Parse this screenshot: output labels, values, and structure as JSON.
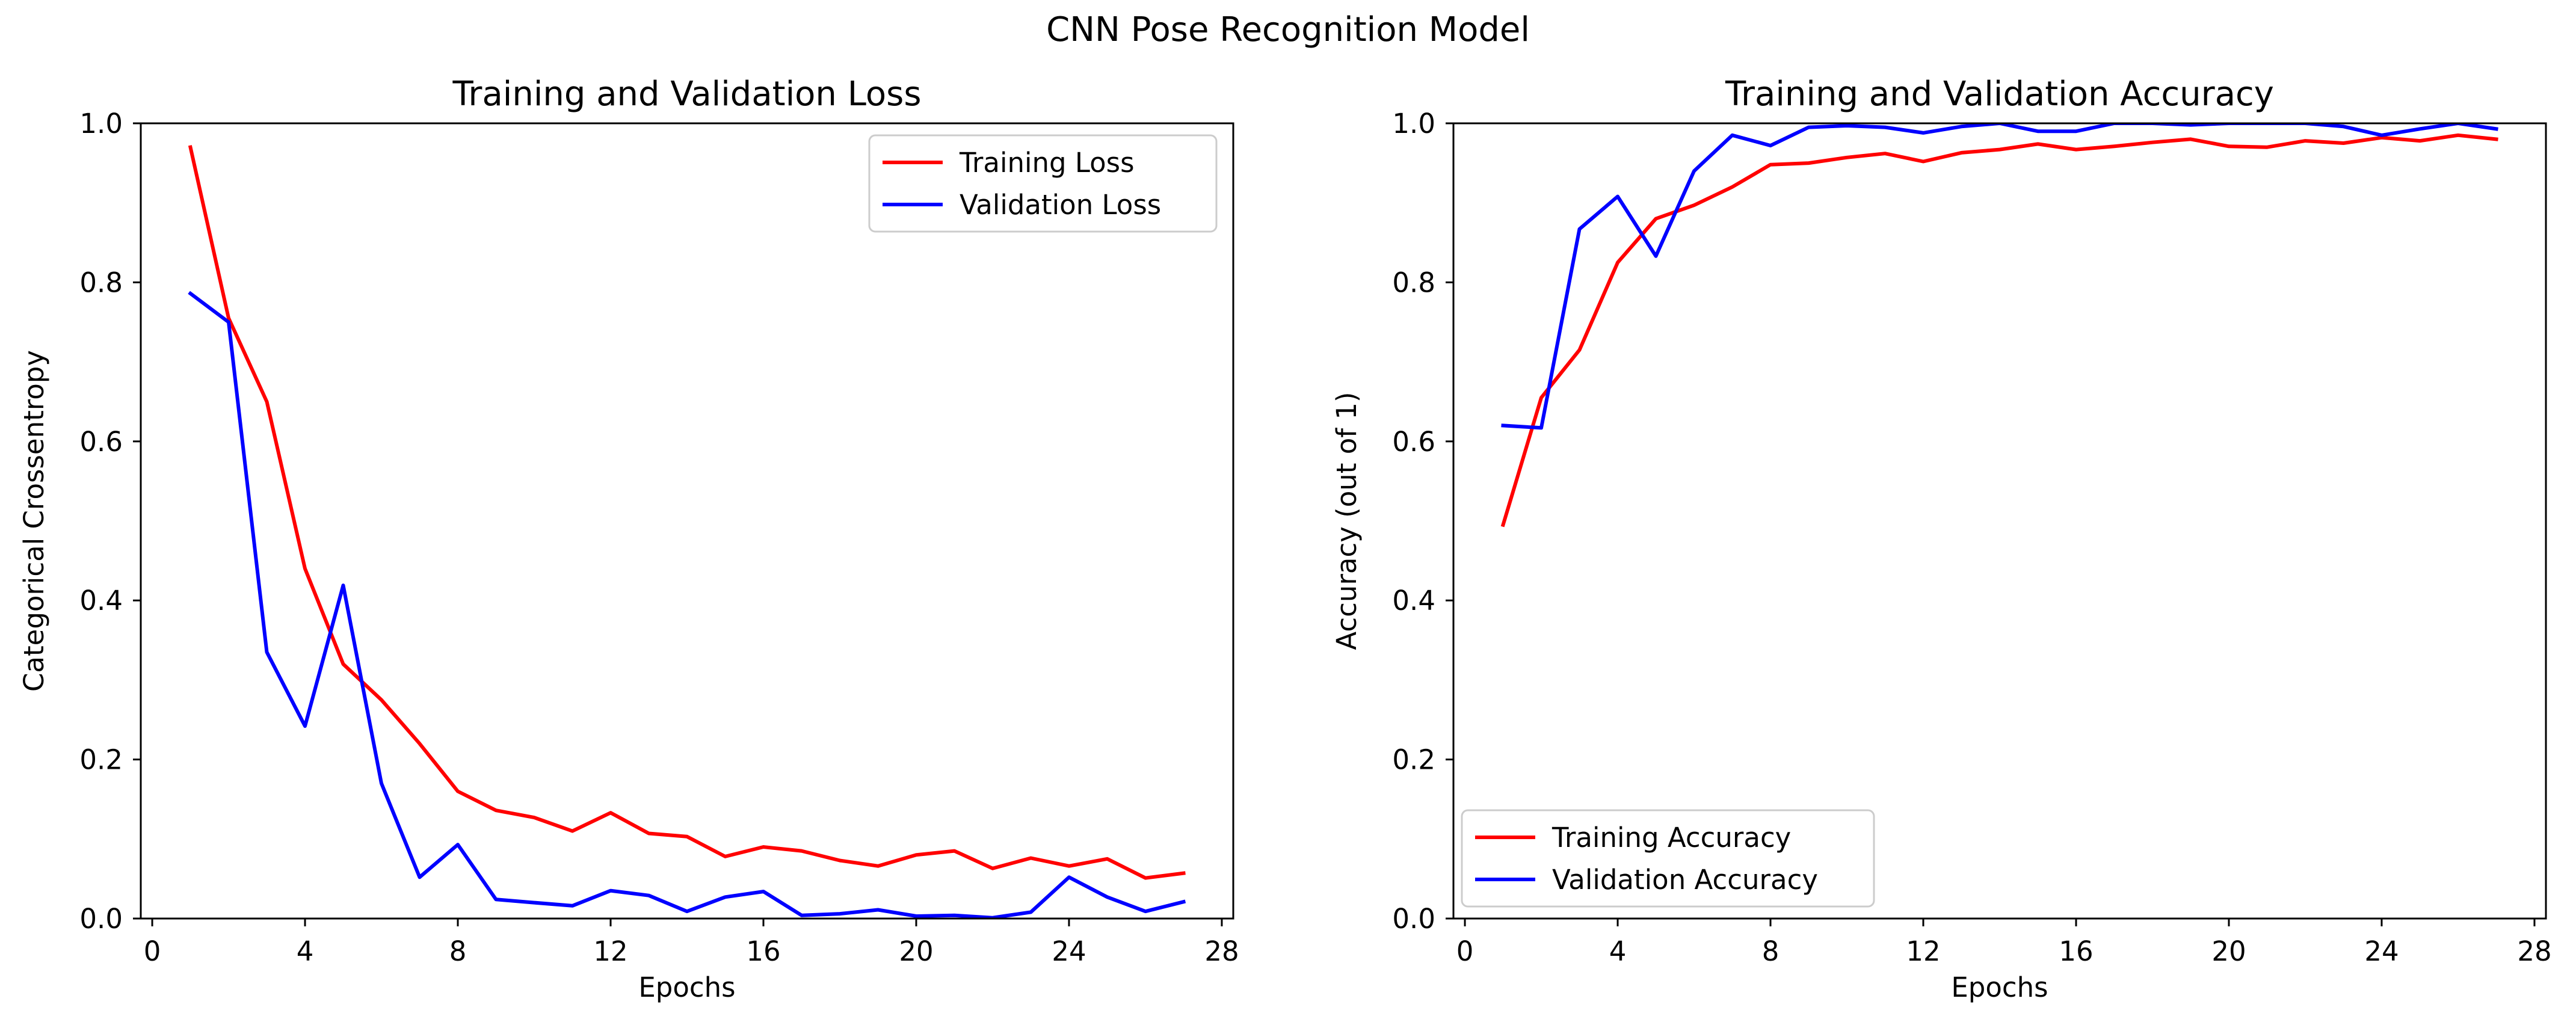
{
  "figure_title": "CNN Pose Recognition Model",
  "colors": {
    "training": "#ff0000",
    "validation": "#0000ff"
  },
  "chart_data": [
    {
      "type": "line",
      "title": "Training and Validation Loss",
      "xlabel": "Epochs",
      "ylabel": "Categorical Crossentropy",
      "xlim": [
        -0.3,
        28.3
      ],
      "ylim": [
        0,
        1.0
      ],
      "xticks": [
        0,
        4,
        8,
        12,
        16,
        20,
        24,
        28
      ],
      "yticks": [
        0.0,
        0.2,
        0.4,
        0.6,
        0.8,
        1.0
      ],
      "ytick_labels": [
        "0.0",
        "0.2",
        "0.4",
        "0.6",
        "0.8",
        "1.0"
      ],
      "grid": false,
      "legend_position": "upper right",
      "x": [
        1,
        2,
        3,
        4,
        5,
        6,
        7,
        8,
        9,
        10,
        11,
        12,
        13,
        14,
        15,
        16,
        17,
        18,
        19,
        20,
        21,
        22,
        23,
        24,
        25,
        26,
        27
      ],
      "series": [
        {
          "name": "Training Loss",
          "color": "#ff0000",
          "values": [
            0.97,
            0.755,
            0.65,
            0.44,
            0.32,
            0.275,
            0.22,
            0.16,
            0.136,
            0.127,
            0.11,
            0.133,
            0.107,
            0.103,
            0.078,
            0.09,
            0.085,
            0.073,
            0.066,
            0.08,
            0.085,
            0.063,
            0.076,
            0.066,
            0.075,
            0.051,
            0.057
          ]
        },
        {
          "name": "Validation Loss",
          "color": "#0000ff",
          "values": [
            0.786,
            0.75,
            0.335,
            0.242,
            0.419,
            0.17,
            0.052,
            0.093,
            0.024,
            0.02,
            0.016,
            0.035,
            0.029,
            0.009,
            0.027,
            0.034,
            0.004,
            0.006,
            0.011,
            0.003,
            0.004,
            0.001,
            0.008,
            0.052,
            0.027,
            0.009,
            0.021
          ]
        }
      ]
    },
    {
      "type": "line",
      "title": "Training and Validation Accuracy",
      "xlabel": "Epochs",
      "ylabel": "Accuracy (out of 1)",
      "xlim": [
        -0.3,
        28.3
      ],
      "ylim": [
        0,
        1.0
      ],
      "xticks": [
        0,
        4,
        8,
        12,
        16,
        20,
        24,
        28
      ],
      "yticks": [
        0.0,
        0.2,
        0.4,
        0.6,
        0.8,
        1.0
      ],
      "ytick_labels": [
        "0.0",
        "0.2",
        "0.4",
        "0.6",
        "0.8",
        "1.0"
      ],
      "grid": false,
      "legend_position": "lower left",
      "x": [
        1,
        2,
        3,
        4,
        5,
        6,
        7,
        8,
        9,
        10,
        11,
        12,
        13,
        14,
        15,
        16,
        17,
        18,
        19,
        20,
        21,
        22,
        23,
        24,
        25,
        26,
        27
      ],
      "series": [
        {
          "name": "Training Accuracy",
          "color": "#ff0000",
          "values": [
            0.495,
            0.655,
            0.715,
            0.825,
            0.88,
            0.897,
            0.92,
            0.948,
            0.95,
            0.957,
            0.962,
            0.952,
            0.963,
            0.967,
            0.974,
            0.967,
            0.971,
            0.976,
            0.98,
            0.971,
            0.97,
            0.978,
            0.975,
            0.982,
            0.978,
            0.985,
            0.98
          ]
        },
        {
          "name": "Validation Accuracy",
          "color": "#0000ff",
          "values": [
            0.62,
            0.617,
            0.867,
            0.908,
            0.833,
            0.94,
            0.985,
            0.972,
            0.995,
            0.997,
            0.995,
            0.988,
            0.996,
            1.0,
            0.99,
            0.99,
            1.0,
            1.0,
            0.998,
            1.0,
            1.0,
            1.0,
            0.996,
            0.985,
            0.993,
            1.0,
            0.993
          ]
        }
      ]
    }
  ]
}
